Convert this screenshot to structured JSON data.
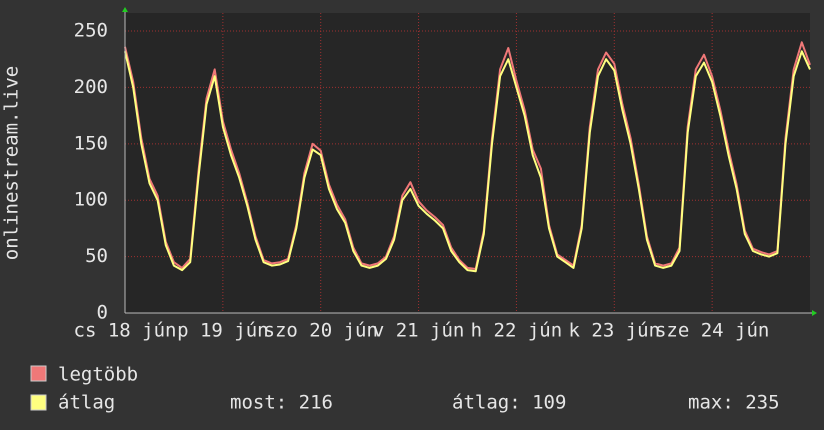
{
  "chart_data": {
    "type": "line",
    "ylabel": "onlinestream.live",
    "xlim": [
      0,
      168
    ],
    "ylim": [
      0,
      266
    ],
    "xticks": [
      {
        "value": 0,
        "label": "cs 18 jún"
      },
      {
        "value": 24,
        "label": "p 19 jún"
      },
      {
        "value": 48,
        "label": "szo 20 jún"
      },
      {
        "value": 72,
        "label": "v 21 jún"
      },
      {
        "value": 96,
        "label": "h 22 jún"
      },
      {
        "value": 120,
        "label": "k 23 jún"
      },
      {
        "value": 144,
        "label": "sze 24 jún"
      }
    ],
    "yticks": [
      0,
      50,
      100,
      150,
      200,
      250
    ],
    "grid": true,
    "x": [
      0,
      2,
      4,
      6,
      8,
      10,
      12,
      14,
      16,
      18,
      20,
      22,
      24,
      26,
      28,
      30,
      32,
      34,
      36,
      38,
      40,
      42,
      44,
      46,
      48,
      50,
      52,
      54,
      56,
      58,
      60,
      62,
      64,
      66,
      68,
      70,
      72,
      74,
      76,
      78,
      80,
      82,
      84,
      86,
      88,
      90,
      92,
      94,
      96,
      98,
      100,
      102,
      104,
      106,
      108,
      110,
      112,
      114,
      116,
      118,
      120,
      122,
      124,
      126,
      128,
      130,
      132,
      134,
      136,
      138,
      140,
      142,
      144,
      146,
      148,
      150,
      152,
      154,
      156,
      158,
      160,
      162,
      164,
      166,
      168
    ],
    "series": [
      {
        "name": "legtöbb",
        "color": "#f07878",
        "values": [
          236,
          205,
          155,
          119,
          104,
          63,
          45,
          40,
          48,
          125,
          190,
          216,
          170,
          145,
          124,
          98,
          68,
          47,
          44,
          45,
          48,
          78,
          124,
          150,
          144,
          114,
          96,
          83,
          58,
          44,
          42,
          44,
          50,
          68,
          104,
          116,
          99,
          91,
          85,
          78,
          58,
          47,
          40,
          39,
          73,
          155,
          216,
          235,
          206,
          180,
          145,
          128,
          78,
          52,
          47,
          42,
          78,
          165,
          216,
          231,
          221,
          185,
          155,
          114,
          68,
          44,
          42,
          44,
          58,
          165,
          216,
          229,
          210,
          180,
          145,
          114,
          73,
          57,
          54,
          52,
          55,
          155,
          216,
          240,
          220
        ]
      },
      {
        "name": "átlag",
        "color": "#ffff80",
        "values": [
          232,
          200,
          150,
          115,
          100,
          60,
          42,
          38,
          45,
          120,
          185,
          210,
          165,
          140,
          120,
          95,
          65,
          45,
          42,
          43,
          46,
          75,
          120,
          145,
          140,
          110,
          92,
          80,
          55,
          42,
          40,
          42,
          48,
          65,
          100,
          110,
          95,
          88,
          82,
          75,
          55,
          45,
          38,
          37,
          70,
          150,
          210,
          225,
          200,
          175,
          140,
          120,
          75,
          50,
          45,
          40,
          75,
          160,
          210,
          225,
          215,
          180,
          150,
          110,
          65,
          42,
          40,
          42,
          55,
          160,
          210,
          222,
          205,
          175,
          140,
          110,
          70,
          55,
          52,
          50,
          53,
          150,
          210,
          232,
          216
        ]
      }
    ],
    "stats": [
      "most: 216",
      "átlag: 109",
      "max: 235"
    ]
  }
}
